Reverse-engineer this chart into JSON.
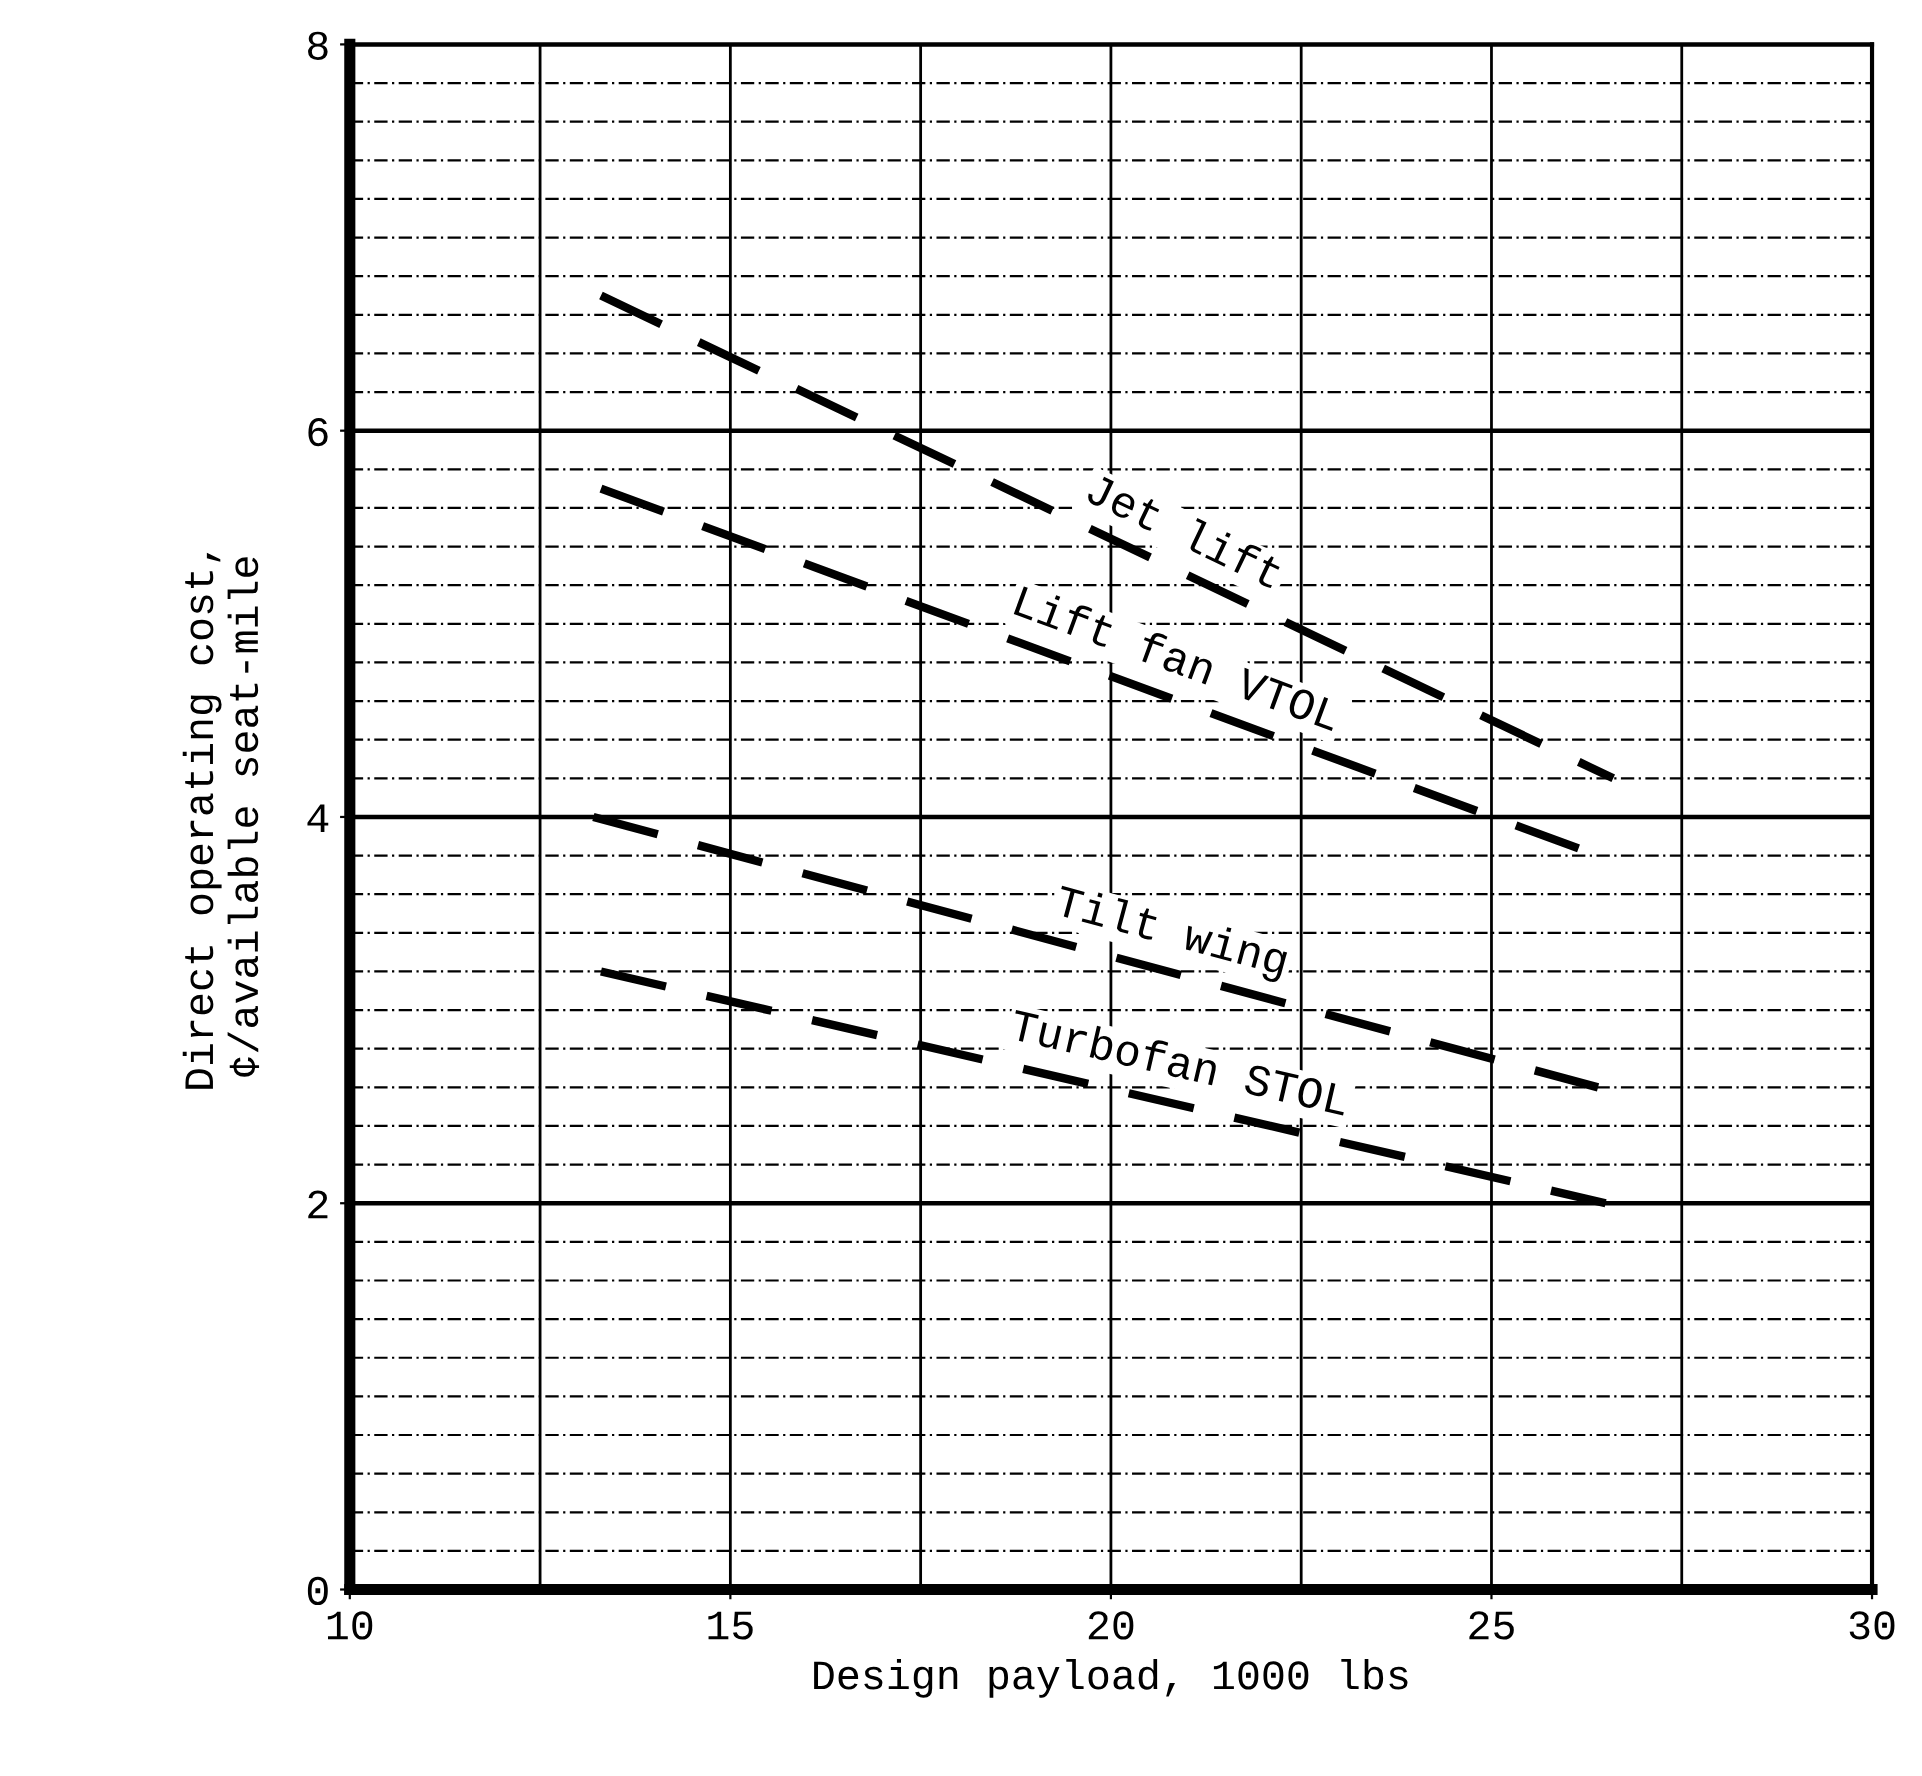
{
  "chart_data": {
    "type": "line",
    "xlabel": "Design payload, 1000 lbs",
    "ylabel": "Direct operating cost,\n¢/available seat-mile",
    "xlim": [
      10,
      30
    ],
    "ylim": [
      0,
      8
    ],
    "xticks": [
      10,
      15,
      20,
      25,
      30
    ],
    "yticks": [
      0,
      2,
      4,
      6,
      8
    ],
    "grid": true,
    "line_style": "dashed",
    "marker": "none",
    "series": [
      {
        "name": "Jet lift",
        "color": "#000000",
        "x": [
          13.3,
          26.6
        ],
        "values": [
          6.7,
          4.2
        ]
      },
      {
        "name": "Lift fan VTOL",
        "color": "#000000",
        "x": [
          13.3,
          26.4
        ],
        "values": [
          5.7,
          3.8
        ]
      },
      {
        "name": "Tilt wing",
        "color": "#000000",
        "x": [
          13.2,
          26.4
        ],
        "values": [
          4.0,
          2.6
        ]
      },
      {
        "name": "Turbofan STOL",
        "color": "#000000",
        "x": [
          13.3,
          26.5
        ],
        "values": [
          3.2,
          2.0
        ]
      }
    ]
  }
}
